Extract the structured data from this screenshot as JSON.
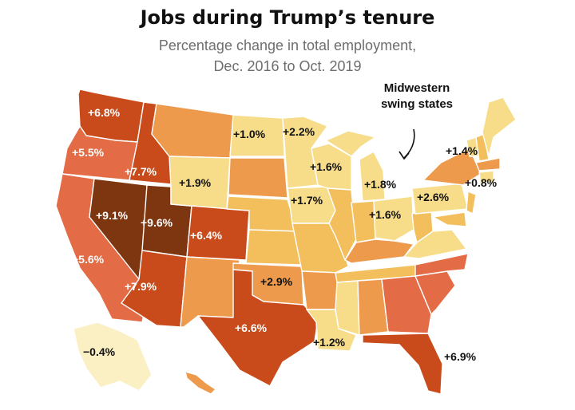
{
  "title": "Jobs during Trump’s tenure",
  "subtitle_line1": "Percentage change in total employment,",
  "subtitle_line2": "Dec. 2016 to Oct. 2019",
  "callout": {
    "line1": "Midwestern",
    "line2": "swing states"
  },
  "colors": {
    "darkest": "#7d3610",
    "dark": "#c94a1a",
    "orange_red": "#e36b45",
    "orange": "#ee9a4c",
    "light_orange": "#f3bf5c",
    "yellow": "#f7dd8a",
    "pale": "#fbefc4"
  },
  "labels": [
    {
      "state": "Washington",
      "value": "+6.8%"
    },
    {
      "state": "Oregon",
      "value": "+5.5%"
    },
    {
      "state": "Idaho",
      "value": "+7.7%"
    },
    {
      "state": "California",
      "value": "+5.6%"
    },
    {
      "state": "Nevada",
      "value": "+9.1%"
    },
    {
      "state": "Utah",
      "value": "+9.6%"
    },
    {
      "state": "Arizona",
      "value": "+7.9%"
    },
    {
      "state": "Colorado",
      "value": "+6.4%"
    },
    {
      "state": "Wyoming",
      "value": "+1.9%"
    },
    {
      "state": "North Dakota",
      "value": "+1.0%"
    },
    {
      "state": "Minnesota",
      "value": "+2.2%"
    },
    {
      "state": "Wisconsin",
      "value": "+1.6%"
    },
    {
      "state": "Iowa",
      "value": "+1.7%"
    },
    {
      "state": "Michigan",
      "value": "+1.8%"
    },
    {
      "state": "Ohio",
      "value": "+1.6%"
    },
    {
      "state": "Pennsylvania",
      "value": "+2.6%"
    },
    {
      "state": "Maine",
      "value": "+1.4%"
    },
    {
      "state": "Connecticut",
      "value": "+0.8%"
    },
    {
      "state": "Oklahoma",
      "value": "+2.9%"
    },
    {
      "state": "Texas",
      "value": "+6.6%"
    },
    {
      "state": "Louisiana",
      "value": "+1.2%"
    },
    {
      "state": "Florida",
      "value": "+6.9%"
    },
    {
      "state": "Alaska",
      "value": "−0.4%"
    }
  ]
}
